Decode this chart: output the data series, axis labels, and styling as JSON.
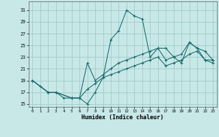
{
  "bg_color": "#c8e8e8",
  "grid_color": "#a0c8c8",
  "line_color": "#1a6b6b",
  "xlabel": "Humidex (Indice chaleur)",
  "xlim": [
    -0.5,
    23.5
  ],
  "ylim": [
    14.5,
    32.5
  ],
  "xticks": [
    0,
    1,
    2,
    3,
    4,
    5,
    6,
    7,
    8,
    9,
    10,
    11,
    12,
    13,
    14,
    15,
    16,
    17,
    18,
    19,
    20,
    21,
    22,
    23
  ],
  "yticks": [
    15,
    17,
    19,
    21,
    23,
    25,
    27,
    29,
    31
  ],
  "line1_x": [
    0,
    1,
    2,
    3,
    4,
    5,
    6,
    7,
    8,
    9,
    10,
    11,
    12,
    13,
    14,
    15,
    16,
    17,
    18,
    19,
    20,
    21,
    22,
    23
  ],
  "line1_y": [
    19,
    18,
    17,
    17,
    16,
    16,
    16,
    15,
    17,
    19.5,
    26,
    27.5,
    31,
    30,
    29.5,
    23,
    24.5,
    24.5,
    23,
    22,
    25.5,
    24.5,
    22.5,
    22.5
  ],
  "line2_x": [
    0,
    2,
    3,
    5,
    6,
    7,
    8,
    9,
    10,
    11,
    12,
    13,
    14,
    15,
    16,
    17,
    18,
    19,
    20,
    21,
    22,
    23
  ],
  "line2_y": [
    19,
    17,
    17,
    16,
    16,
    22,
    19,
    20,
    21,
    22,
    22.5,
    23,
    23.5,
    24,
    24.5,
    22.5,
    23,
    23.5,
    25.5,
    24.5,
    24,
    22.5
  ],
  "line3_x": [
    0,
    2,
    3,
    5,
    6,
    7,
    8,
    9,
    10,
    11,
    12,
    13,
    14,
    15,
    16,
    17,
    18,
    19,
    20,
    21,
    22,
    23
  ],
  "line3_y": [
    19,
    17,
    17,
    16,
    16,
    17.5,
    18.5,
    19.5,
    20,
    20.5,
    21,
    21.5,
    22,
    22.5,
    23,
    21.5,
    22,
    22.5,
    23.5,
    24,
    22.5,
    22
  ]
}
